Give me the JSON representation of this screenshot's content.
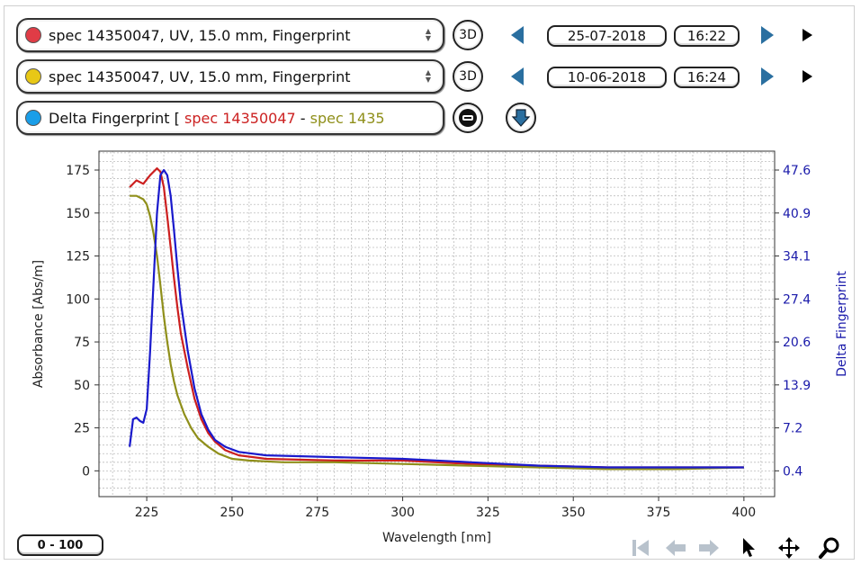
{
  "spectra": [
    {
      "color": "#e03c46",
      "label": "spec 14350047, UV, 15.0 mm, Fingerprint",
      "button_3d": "3D",
      "date": "25-07-2018",
      "time": "16:22"
    },
    {
      "color": "#e8c816",
      "label": "spec 14350047, UV, 15.0 mm, Fingerprint",
      "button_3d": "3D",
      "date": "10-06-2018",
      "time": "16:24"
    }
  ],
  "delta": {
    "color": "#1a9ee8",
    "prefix": "Delta Fingerprint",
    "bracket": "[",
    "part_a": "spec 14350047",
    "separator": "-",
    "part_b": "spec 1435"
  },
  "range_button": "0 - 100",
  "toolbar": [
    "first-icon",
    "back-icon",
    "forward-icon",
    "pointer-icon",
    "pan-icon",
    "zoom-icon"
  ],
  "chart_data": {
    "type": "line",
    "title": "",
    "xlabel": "Wavelength [nm]",
    "ylabel": "Absorbance [Abs/m]",
    "y2label": "Delta Fingerprint",
    "xlim": [
      211,
      409
    ],
    "ylim": [
      -15,
      186
    ],
    "x_ticks": [
      225,
      250,
      275,
      300,
      325,
      350,
      375,
      400
    ],
    "y_ticks": [
      0,
      25,
      50,
      75,
      100,
      125,
      150,
      175
    ],
    "y2_ticks": [
      "0.4",
      "7.2",
      "13.9",
      "20.6",
      "27.4",
      "34.1",
      "40.9",
      "47.6"
    ],
    "grid": true,
    "series": [
      {
        "color": "#cc1f1f",
        "axis": "left",
        "x": [
          220,
          222,
          224,
          226,
          228,
          229,
          230,
          231,
          232,
          233,
          234,
          235,
          237,
          239,
          241,
          243,
          245,
          248,
          252,
          260,
          280,
          300,
          320,
          340,
          360,
          380,
          400
        ],
        "y": [
          165,
          169,
          167,
          172,
          176,
          174,
          165,
          148,
          130,
          112,
          95,
          80,
          60,
          42,
          30,
          22,
          17,
          12,
          9,
          7,
          6,
          6,
          4,
          3,
          2,
          2,
          2
        ]
      },
      {
        "color": "#8f8f1a",
        "axis": "left",
        "x": [
          220,
          222,
          224,
          225,
          226,
          227,
          228,
          229,
          230,
          231,
          232,
          233,
          234,
          236,
          238,
          240,
          243,
          246,
          250,
          255,
          265,
          280,
          300,
          320,
          340,
          360,
          380,
          400
        ],
        "y": [
          160,
          160,
          158,
          155,
          148,
          138,
          125,
          108,
          90,
          75,
          62,
          52,
          44,
          33,
          25,
          19,
          14,
          10,
          7,
          6,
          5,
          5,
          4,
          3,
          2,
          1,
          1,
          2
        ]
      },
      {
        "color": "#1a1acc",
        "axis": "left",
        "x": [
          220,
          221,
          222,
          223,
          224,
          225,
          226,
          227,
          228,
          229,
          230,
          231,
          232,
          233,
          234,
          235,
          237,
          239,
          241,
          243,
          245,
          248,
          252,
          260,
          280,
          300,
          320,
          340,
          360,
          380,
          400
        ],
        "y": [
          14,
          30,
          31,
          29,
          28,
          36,
          70,
          110,
          150,
          172,
          175,
          172,
          160,
          140,
          118,
          98,
          70,
          48,
          33,
          24,
          18,
          14,
          11,
          9,
          8,
          7,
          5,
          3,
          2,
          2,
          2
        ]
      }
    ]
  }
}
